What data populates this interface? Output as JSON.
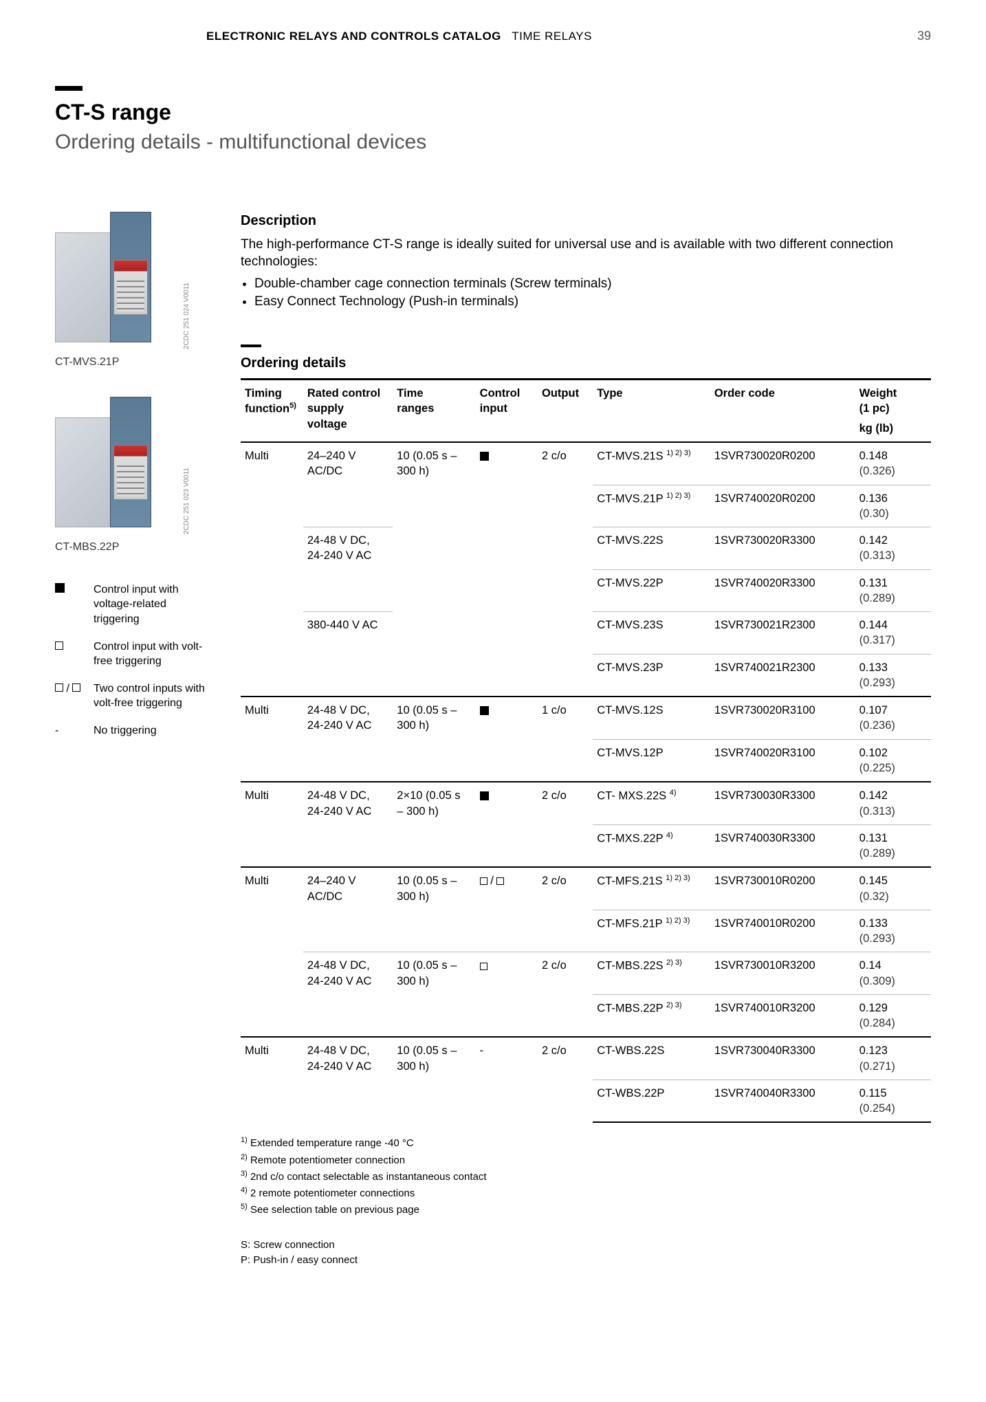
{
  "header": {
    "catalog": "ELECTRONIC RELAYS AND CONTROLS CATALOG",
    "section": "TIME RELAYS",
    "pageNumber": "39"
  },
  "title": "CT-S range",
  "subtitle": "Ordering details - multifunctional devices",
  "images": [
    {
      "caption": "CT-MVS.21P",
      "ref": "2CDC 251 024 V0011"
    },
    {
      "caption": "CT-MBS.22P",
      "ref": "2CDC 251 023 V0011"
    }
  ],
  "legend": [
    {
      "symbol": "filled",
      "text": "Control input with voltage-related triggering"
    },
    {
      "symbol": "empty",
      "text": "Control input with volt-free triggering"
    },
    {
      "symbol": "twoEmpty",
      "text": "Two control inputs with volt-free triggering"
    },
    {
      "symbol": "dash",
      "text": "No triggering"
    }
  ],
  "description": {
    "heading": "Description",
    "body": "The high-performance CT-S range is ideally suited for universal use and is available with two different connection technologies:",
    "bullets": [
      "Double-chamber cage connection terminals (Screw terminals)",
      "Easy Connect Technology (Push-in terminals)"
    ]
  },
  "tableHeading": "Ordering details",
  "columns": {
    "timing": {
      "l1": "Timing",
      "l2": "function",
      "sup": "5)"
    },
    "voltage": {
      "l1": "Rated control",
      "l2": "supply",
      "l3": "voltage"
    },
    "time": {
      "l1": "Time",
      "l2": "ranges"
    },
    "ctrl": {
      "l1": "Control",
      "l2": "input"
    },
    "output": {
      "l1": "Output"
    },
    "type": {
      "l1": "Type"
    },
    "code": {
      "l1": "Order code"
    },
    "weight": {
      "l1": "Weight",
      "l2": "(1 pc)",
      "unit": "kg (lb)"
    }
  },
  "rows": [
    {
      "g": 1,
      "timing": "Multi",
      "voltage": "24–240 V AC/DC",
      "time": "10 (0.05 s – 300 h)",
      "ctrl": "filled",
      "output": "2 c/o",
      "type": "CT-MVS.21S",
      "typeSup": "1) 2) 3)",
      "code": "1SVR730020R0200",
      "w1": "0.148",
      "w2": "(0.326)"
    },
    {
      "g": 1,
      "type": "CT-MVS.21P",
      "typeSup": "1) 2) 3)",
      "code": "1SVR740020R0200",
      "w1": "0.136",
      "w2": "(0.30)"
    },
    {
      "g": 1,
      "voltage": "24-48 V DC, 24-240 V AC",
      "type": "CT-MVS.22S",
      "code": "1SVR730020R3300",
      "w1": "0.142",
      "w2": "(0.313)"
    },
    {
      "g": 1,
      "type": "CT-MVS.22P",
      "code": "1SVR740020R3300",
      "w1": "0.131",
      "w2": "(0.289)"
    },
    {
      "g": 1,
      "voltage": "380-440 V AC",
      "type": "CT-MVS.23S",
      "code": "1SVR730021R2300",
      "w1": "0.144",
      "w2": "(0.317)"
    },
    {
      "g": 1,
      "type": "CT-MVS.23P",
      "code": "1SVR740021R2300",
      "w1": "0.133",
      "w2": "(0.293)"
    },
    {
      "g": 2,
      "timing": "Multi",
      "voltage": "24-48 V DC, 24-240 V AC",
      "time": "10 (0.05 s – 300 h)",
      "ctrl": "filled",
      "output": "1 c/o",
      "type": "CT-MVS.12S",
      "code": "1SVR730020R3100",
      "w1": "0.107",
      "w2": "(0.236)"
    },
    {
      "g": 2,
      "type": "CT-MVS.12P",
      "code": "1SVR740020R3100",
      "w1": "0.102",
      "w2": "(0.225)"
    },
    {
      "g": 3,
      "timing": "Multi",
      "voltage": "24-48 V DC, 24-240 V AC",
      "time": "2×10 (0.05 s – 300 h)",
      "ctrl": "filled",
      "output": "2 c/o",
      "type": "CT- MXS.22S",
      "typeSup": "4)",
      "code": "1SVR730030R3300",
      "w1": "0.142",
      "w2": "(0.313)"
    },
    {
      "g": 3,
      "type": "CT-MXS.22P",
      "typeSup": "4)",
      "code": "1SVR740030R3300",
      "w1": "0.131",
      "w2": "(0.289)"
    },
    {
      "g": 4,
      "timing": "Multi",
      "voltage": "24–240 V AC/DC",
      "time": "10 (0.05 s – 300 h)",
      "ctrl": "twoEmpty",
      "output": "2 c/o",
      "type": "CT-MFS.21S",
      "typeSup": "1) 2) 3)",
      "code": "1SVR730010R0200",
      "w1": "0.145",
      "w2": "(0.32)"
    },
    {
      "g": 4,
      "type": "CT-MFS.21P",
      "typeSup": "1) 2) 3)",
      "code": "1SVR740010R0200",
      "w1": "0.133",
      "w2": "(0.293)"
    },
    {
      "g": 4,
      "voltage": "24-48 V DC, 24-240 V AC",
      "time": "10 (0.05 s – 300 h)",
      "ctrl": "empty",
      "output": "2 c/o",
      "type": "CT-MBS.22S",
      "typeSup": "2) 3)",
      "code": "1SVR730010R3200",
      "w1": "0.14",
      "w2": "(0.309)"
    },
    {
      "g": 4,
      "type": "CT-MBS.22P",
      "typeSup": "2) 3)",
      "code": "1SVR740010R3200",
      "w1": "0.129",
      "w2": "(0.284)"
    },
    {
      "g": 5,
      "timing": "Multi",
      "voltage": "24-48 V DC, 24-240 V AC",
      "time": "10 (0.05 s – 300 h)",
      "ctrl": "dash",
      "output": "2 c/o",
      "type": "CT-WBS.22S",
      "code": "1SVR730040R3300",
      "w1": "0.123",
      "w2": "(0.271)"
    },
    {
      "g": 5,
      "type": "CT-WBS.22P",
      "code": "1SVR740040R3300",
      "w1": "0.115",
      "w2": "(0.254)"
    }
  ],
  "footnotes": [
    "1) Extended temperature range -40 °C",
    "2) Remote potentiometer connection",
    "3) 2nd c/o contact selectable as instantaneous contact",
    "4) 2 remote potentiometer connections",
    "5) See selection table on previous page"
  ],
  "connNotes": [
    "S: Screw connection",
    "P: Push-in / easy connect"
  ],
  "colors": {
    "text": "#000000",
    "muted": "#555555",
    "rule": "#bbbbbb",
    "accent": "#000000"
  }
}
